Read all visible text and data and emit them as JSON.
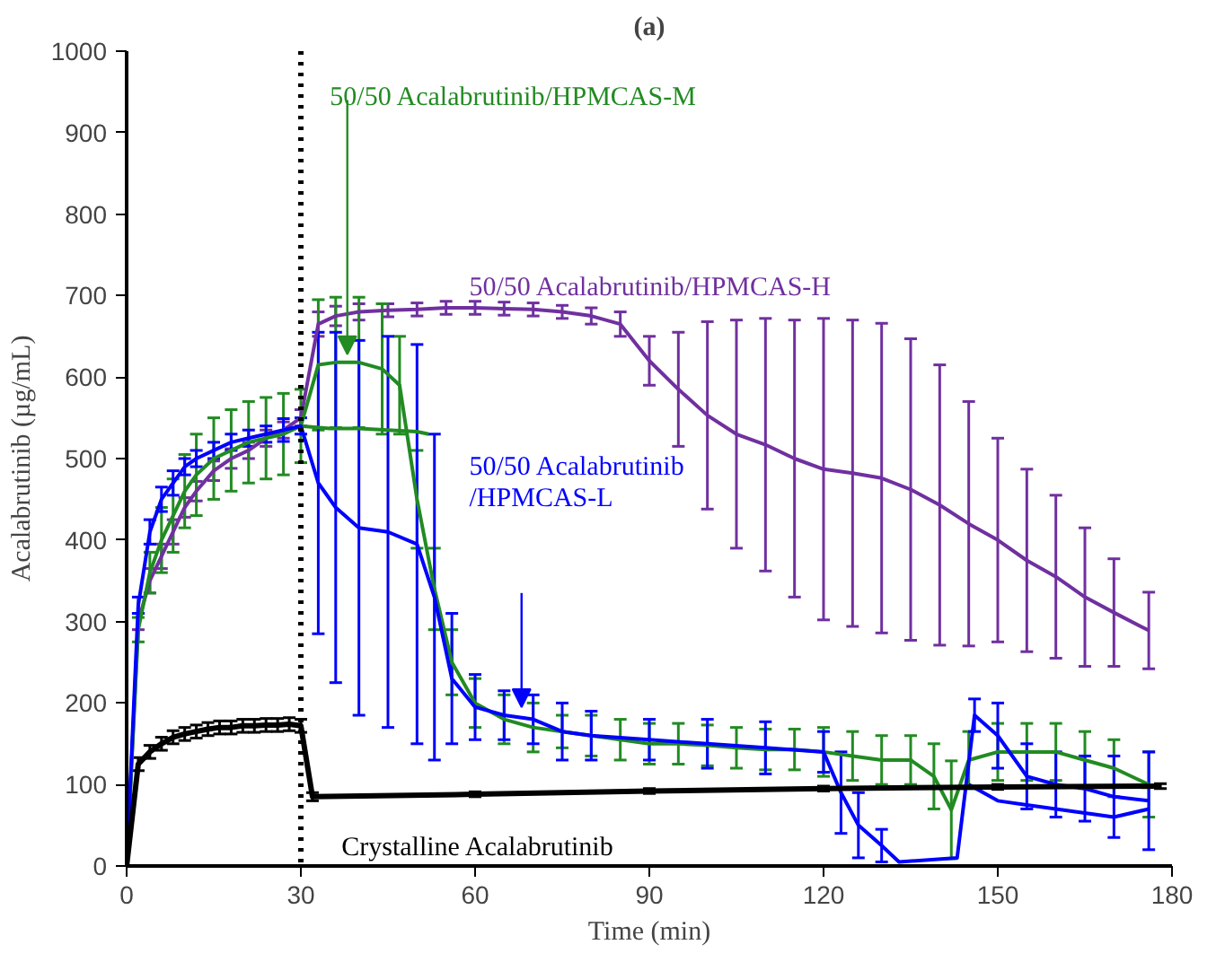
{
  "chart_data": {
    "type": "line",
    "title": "(a)",
    "xlabel": "Time (min)",
    "ylabel": "Acalabrutinib (µg/mL)",
    "xlim": [
      0,
      180
    ],
    "ylim": [
      0,
      1000
    ],
    "xticks": [
      0,
      30,
      60,
      90,
      120,
      150,
      180
    ],
    "yticks": [
      0,
      100,
      200,
      300,
      400,
      500,
      600,
      700,
      800,
      900,
      1000
    ],
    "grid": false,
    "marker": "none",
    "line_style": "solid",
    "ref_lines": [
      {
        "axis": "x",
        "value": 30,
        "color": "#000000",
        "line_style": "dotted"
      }
    ],
    "series": [
      {
        "name": "50/50 Acalabrutinib/HPMCAS-H",
        "color": "#7030a0",
        "x": [
          0,
          2,
          4,
          6,
          8,
          10,
          12,
          15,
          18,
          21,
          24,
          27,
          30,
          33,
          36,
          40,
          45,
          50,
          55,
          60,
          65,
          70,
          75,
          80,
          85,
          90,
          95,
          100,
          105,
          110,
          115,
          120,
          125,
          130,
          135,
          140,
          145,
          150,
          155,
          160,
          165,
          170,
          176
        ],
        "values": [
          0,
          300,
          350,
          380,
          410,
          440,
          460,
          485,
          500,
          510,
          525,
          535,
          550,
          665,
          675,
          680,
          682,
          683,
          685,
          685,
          684,
          683,
          680,
          675,
          665,
          620,
          585,
          553,
          530,
          517,
          500,
          487,
          482,
          476,
          462,
          443,
          420,
          400,
          375,
          355,
          330,
          311,
          289
        ],
        "errors": [
          null,
          10,
          15,
          15,
          15,
          12,
          12,
          12,
          12,
          10,
          10,
          10,
          10,
          15,
          12,
          10,
          8,
          8,
          8,
          8,
          8,
          8,
          8,
          10,
          15,
          30,
          70,
          115,
          140,
          155,
          170,
          185,
          188,
          190,
          185,
          172,
          150,
          125,
          112,
          100,
          85,
          66,
          47
        ]
      },
      {
        "name": "50/50 Acalabrutinib/HPMCAS-M",
        "color": "#228b22",
        "x": [
          0,
          2,
          4,
          6,
          8,
          10,
          12,
          15,
          18,
          21,
          24,
          27,
          30,
          33,
          36,
          40,
          44,
          47,
          50,
          53,
          56,
          60,
          65,
          70,
          75,
          80,
          85,
          90,
          95,
          100,
          105,
          110,
          115,
          120,
          125,
          130,
          135,
          139,
          142,
          145,
          150,
          155,
          160,
          165,
          170,
          176
        ],
        "values": [
          0,
          290,
          360,
          400,
          430,
          460,
          480,
          500,
          510,
          520,
          525,
          530,
          540,
          615,
          618,
          618,
          610,
          590,
          450,
          340,
          250,
          200,
          180,
          170,
          165,
          160,
          155,
          150,
          150,
          148,
          145,
          143,
          143,
          140,
          135,
          130,
          130,
          110,
          69,
          130,
          140,
          140,
          140,
          130,
          120,
          100
        ],
        "errors": [
          null,
          15,
          25,
          40,
          45,
          45,
          50,
          50,
          50,
          50,
          50,
          50,
          45,
          80,
          80,
          80,
          80,
          60,
          60,
          50,
          40,
          30,
          30,
          30,
          20,
          25,
          25,
          25,
          25,
          25,
          25,
          25,
          25,
          30,
          30,
          30,
          30,
          40,
          60,
          35,
          35,
          35,
          35,
          35,
          35,
          40
        ]
      },
      {
        "color": "#228b22",
        "x": [
          30,
          35,
          40,
          45,
          50,
          52
        ],
        "values": [
          540,
          537,
          537,
          535,
          533,
          530
        ]
      },
      {
        "name": "50/50 Acalabrutinib\n/HPMCAS-L",
        "color": "#0000ff",
        "x": [
          0,
          2,
          4,
          6,
          8,
          10,
          12,
          15,
          18,
          21,
          24,
          27,
          30,
          33,
          36,
          40,
          45,
          50,
          53,
          56,
          60,
          65,
          70,
          75,
          80,
          90,
          100,
          110,
          120,
          123,
          126,
          130,
          133,
          143,
          146,
          150,
          155,
          160,
          165,
          170,
          176
        ],
        "values": [
          0,
          320,
          410,
          450,
          470,
          490,
          500,
          510,
          520,
          525,
          530,
          535,
          540,
          470,
          440,
          415,
          410,
          395,
          330,
          230,
          195,
          185,
          180,
          165,
          160,
          155,
          150,
          145,
          140,
          90,
          50,
          25,
          5,
          10,
          185,
          160,
          110,
          100,
          95,
          85,
          80
        ],
        "errors": [
          null,
          10,
          15,
          15,
          15,
          10,
          10,
          10,
          10,
          10,
          10,
          14,
          10,
          185,
          215,
          230,
          240,
          245,
          200,
          80,
          40,
          30,
          30,
          35,
          30,
          25,
          30,
          32,
          25,
          50,
          40,
          20,
          null,
          null,
          20,
          40,
          40,
          40,
          40,
          50,
          60
        ]
      },
      {
        "color": "#0000ff",
        "x": [
          145,
          150,
          155,
          160,
          165,
          170,
          176
        ],
        "values": [
          100,
          80,
          75,
          70,
          65,
          60,
          70
        ]
      },
      {
        "name": "Crystalline Acalabrutinib",
        "color": "#000000",
        "x": [
          0,
          2,
          4,
          6,
          8,
          10,
          12,
          14,
          16,
          18,
          20,
          22,
          24,
          26,
          28,
          30,
          32,
          60,
          90,
          120,
          150,
          178
        ],
        "values": [
          0,
          125,
          140,
          150,
          158,
          162,
          165,
          168,
          170,
          170,
          172,
          172,
          173,
          173,
          174,
          172,
          85,
          88,
          92,
          95,
          97,
          98
        ],
        "errors": [
          null,
          8,
          8,
          8,
          8,
          8,
          8,
          8,
          8,
          8,
          8,
          8,
          8,
          8,
          8,
          8,
          5,
          3,
          3,
          3,
          3,
          3
        ]
      }
    ]
  }
}
